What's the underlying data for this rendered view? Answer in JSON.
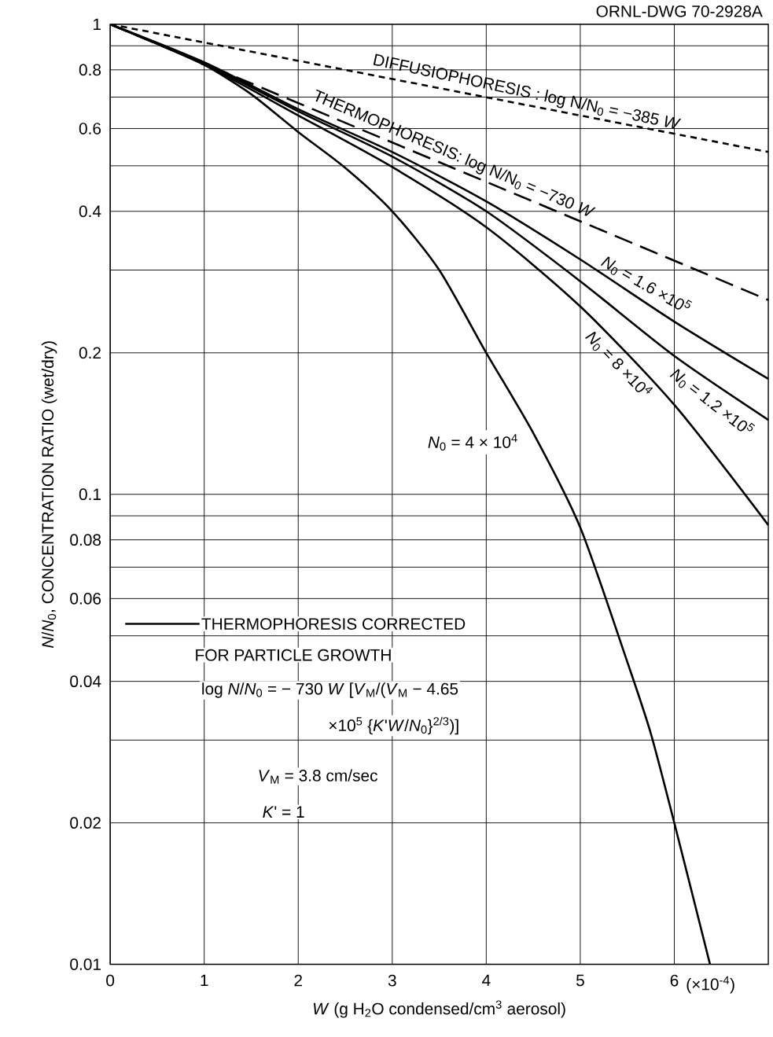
{
  "chart_data": {
    "type": "line",
    "xlabel": "*W* (g H$_{2}$O condensed/cm$^{3}$ aerosol)",
    "ylabel": "*N*/*N*$_{0}$, CONCENTRATION RATIO (wet/dry)",
    "xlim": [
      0,
      7
    ],
    "xticks": [
      0,
      1,
      2,
      3,
      4,
      5,
      6
    ],
    "ylim": [
      0.01,
      1
    ],
    "yticks": [
      {
        "value": 1,
        "label": "1"
      },
      {
        "value": 0.9,
        "label": null
      },
      {
        "value": 0.8,
        "label": "0.8"
      },
      {
        "value": 0.7,
        "label": null
      },
      {
        "value": 0.6,
        "label": "0.6"
      },
      {
        "value": 0.5,
        "label": null
      },
      {
        "value": 0.4,
        "label": "0.4"
      },
      {
        "value": 0.3,
        "label": null
      },
      {
        "value": 0.2,
        "label": "0.2"
      },
      {
        "value": 0.1,
        "label": "0.1"
      },
      {
        "value": 0.09,
        "label": null
      },
      {
        "value": 0.08,
        "label": "0.08"
      },
      {
        "value": 0.07,
        "label": null
      },
      {
        "value": 0.06,
        "label": "0.06"
      },
      {
        "value": 0.05,
        "label": null
      },
      {
        "value": 0.04,
        "label": "0.04"
      },
      {
        "value": 0.03,
        "label": null
      },
      {
        "value": 0.02,
        "label": "0.02"
      },
      {
        "value": 0.01,
        "label": "0.01"
      }
    ],
    "log": "y",
    "grid": true,
    "series": [
      {
        "name": "DIFFUSIOPHORESIS : log N/N$_{0}$ = −385 *W*",
        "color": "#000000",
        "line_style": "dotted",
        "x": [
          0,
          7
        ],
        "values": [
          1,
          0.535
        ]
      },
      {
        "name": "THERMOPHORESIS: log N/N$_{0}$ = −730 *W*",
        "color": "#000000",
        "line_style": "dashed",
        "x": [
          0,
          7
        ],
        "values": [
          1,
          0.259
        ]
      },
      {
        "name": "*N*$_{0}$ = 1.6 ×10$^{5}$",
        "color": "#000000",
        "line_style": "solid",
        "x": [
          0,
          1,
          2,
          3,
          4,
          5,
          6,
          7
        ],
        "values": [
          1,
          0.83,
          0.66,
          0.535,
          0.42,
          0.316,
          0.233,
          0.176
        ]
      },
      {
        "name": "*N*$_{0}$ = 1.2 ×10$^{5}$",
        "color": "#000000",
        "line_style": "solid",
        "x": [
          0,
          1,
          2,
          3,
          4,
          5,
          6,
          7
        ],
        "values": [
          1,
          0.825,
          0.653,
          0.523,
          0.4,
          0.284,
          0.197,
          0.144
        ]
      },
      {
        "name": "*N*$_{0}$ = 8 ×10$^{4}$",
        "color": "#000000",
        "line_style": "solid",
        "x": [
          0,
          1,
          2,
          3,
          4,
          5,
          6,
          7
        ],
        "values": [
          1,
          0.82,
          0.64,
          0.497,
          0.37,
          0.251,
          0.155,
          0.086
        ]
      },
      {
        "name": "*N*$_{0}$ = 4 × 10$^{4}$",
        "color": "#000000",
        "line_style": "solid",
        "x": [
          0,
          0.5,
          1,
          1.5,
          2,
          2.5,
          3,
          3.5,
          4,
          4.5,
          5,
          5.5,
          5.75,
          6,
          6.38
        ],
        "values": [
          1,
          0.91,
          0.82,
          0.71,
          0.59,
          0.495,
          0.4,
          0.3,
          0.2,
          0.135,
          0.085,
          0.044,
          0.031,
          0.02,
          0.01
        ]
      }
    ],
    "annotations": [
      "ORNL-DWG 70-2928A",
      "(×10$^{-4}$)",
      "THERMOPHORESIS CORRECTED",
      "FOR PARTICLE GROWTH",
      "log *N*/*N*$_{0}$ = − 730 *W* [*V*$_{M}$/(*V*$_{M}$ − 4.65",
      "×10$^{5}$ {*K*'*W*/*N*$_{0}$}$^{2/3}$)]",
      "*V*$_{M}$ = 3.8 cm/sec",
      "*K*' = 1"
    ]
  }
}
